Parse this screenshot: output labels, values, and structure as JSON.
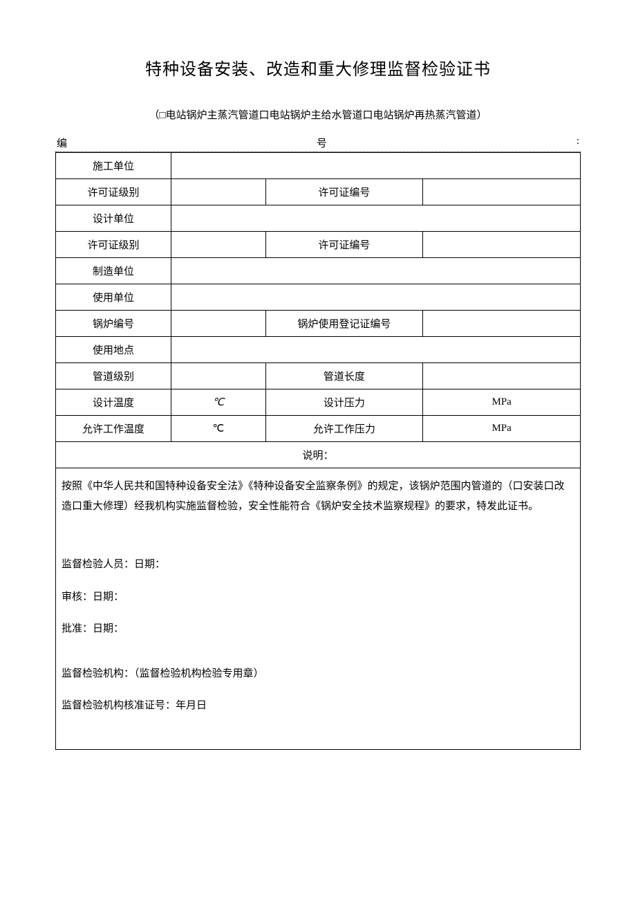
{
  "title": "特种设备安装、改造和重大修理监督检验证书",
  "subtitle": "（□电站锅炉主蒸汽管道口电站锅炉主给水管道口电站锅炉再热蒸汽管道）",
  "numberRow": {
    "left": "编",
    "mid": "号",
    "right": ":"
  },
  "rows": {
    "r1": {
      "label": "施工单位"
    },
    "r2": {
      "label": "许可证级别",
      "label3": "许可证编号"
    },
    "r3": {
      "label": "设计单位"
    },
    "r4": {
      "label": "许可证级别",
      "label3": "许可证编号"
    },
    "r5": {
      "label": "制造单位"
    },
    "r6": {
      "label": "使用单位"
    },
    "r7": {
      "label": "锅炉编号",
      "label3": "锅炉使用登记证编号"
    },
    "r8": {
      "label": "使用地点"
    },
    "r9": {
      "label": "管道级别",
      "label3": "管道长度"
    },
    "r10": {
      "label": "设计温度",
      "val2": "℃",
      "label3": "设计压力",
      "val4": "MPa"
    },
    "r11": {
      "label": "允许工作温度",
      "val2": "℃",
      "label3": "允许工作压力",
      "val4": "MPa"
    }
  },
  "explainLabel": "说明：",
  "body": {
    "para": "按照《中华人民共和国特种设备安全法》《特种设备安全监察条例》的规定，该锅炉范围内管道的（口安装口改造口重大修理）经我机构实施监督检验，安全性能符合《锅炉安全技术监察规程》的要求，特发此证书。",
    "line1": "监督检验人员：日期：",
    "line2": "审核：日期：",
    "line3": "批准：日期：",
    "line4": "监督检验机构：（监督检验机构检验专用章）",
    "line5": "监督检验机构核准证号：年月日"
  },
  "colors": {
    "border": "#000000",
    "bg": "#ffffff",
    "text": "#000000"
  }
}
